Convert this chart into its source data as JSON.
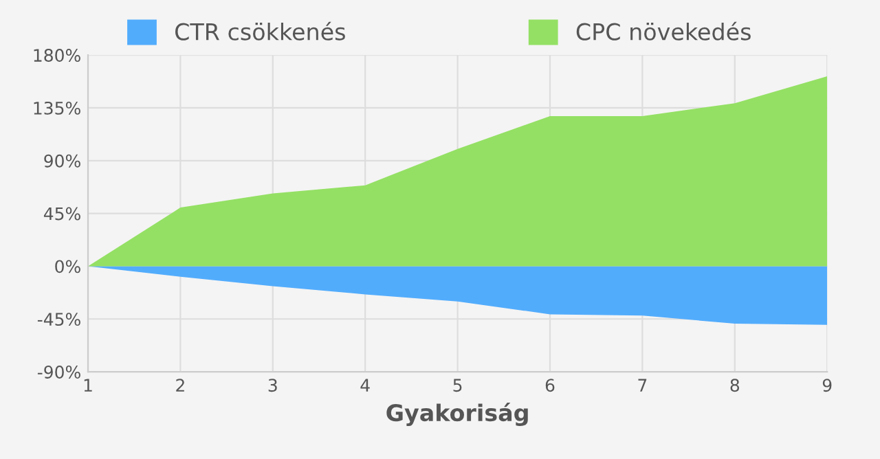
{
  "chart_data": {
    "type": "area",
    "xlabel": "Gyakoriság",
    "x": [
      1,
      2,
      3,
      4,
      5,
      6,
      7,
      8,
      9
    ],
    "series": [
      {
        "name": "CTR csökkenés",
        "color": "#52acfc",
        "values": [
          0,
          -9,
          -17,
          -24,
          -30,
          -41,
          -42,
          -49,
          -50
        ]
      },
      {
        "name": "CPC növekedés",
        "color": "#94e064",
        "values": [
          0,
          50,
          62,
          69,
          100,
          128,
          128,
          139,
          162
        ]
      }
    ],
    "xlim": [
      1,
      9
    ],
    "xticks": [
      1,
      2,
      3,
      4,
      5,
      6,
      7,
      8,
      9
    ],
    "ylim": [
      -90,
      180
    ],
    "yticks": [
      {
        "value": -90,
        "label": "-90%"
      },
      {
        "value": -45,
        "label": "-45%"
      },
      {
        "value": 0,
        "label": "0%"
      },
      {
        "value": 45,
        "label": "45%"
      },
      {
        "value": 90,
        "label": "90%"
      },
      {
        "value": 135,
        "label": "135%"
      },
      {
        "value": 180,
        "label": "180%"
      }
    ],
    "grid": true,
    "legend": "top"
  }
}
